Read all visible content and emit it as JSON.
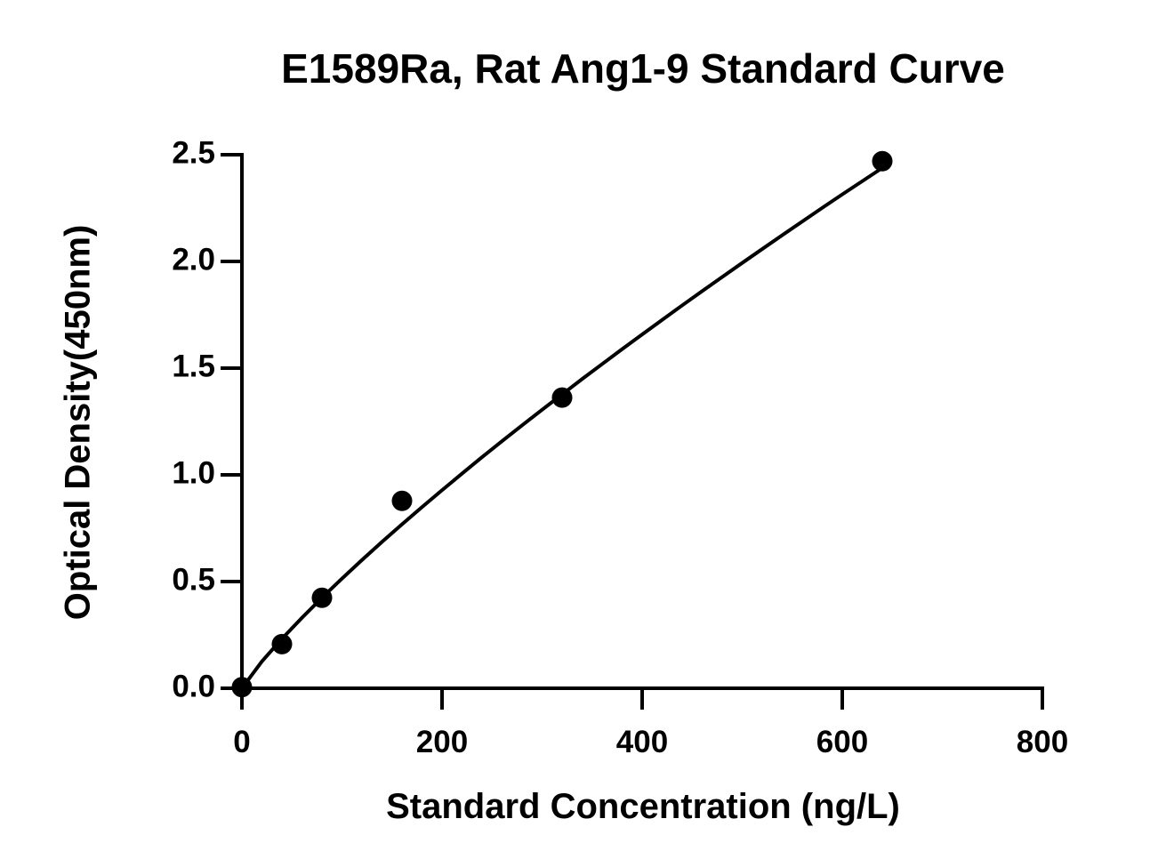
{
  "chart_data": {
    "type": "scatter",
    "title": "E1589Ra, Rat Ang1-9 Standard Curve",
    "xlabel": "Standard Concentration (ng/L)",
    "ylabel": "Optical Density(450nm)",
    "xlim": [
      0,
      800
    ],
    "ylim": [
      0,
      2.5
    ],
    "xticks": [
      0,
      200,
      400,
      600,
      800
    ],
    "xtick_labels": [
      "0",
      "200",
      "400",
      "600",
      "800"
    ],
    "yticks": [
      0,
      0.5,
      1.0,
      1.5,
      2.0,
      2.5
    ],
    "ytick_labels": [
      "0.0",
      "0.5",
      "1.0",
      "1.5",
      "2.0",
      "2.5"
    ],
    "grid": false,
    "series": [
      {
        "x": [
          0,
          40,
          80,
          160,
          320,
          640
        ],
        "y": [
          0.005,
          0.207,
          0.424,
          0.878,
          1.362,
          2.47
        ]
      }
    ],
    "fit_curve": {
      "x": [
        0,
        20,
        40,
        60,
        80,
        100,
        120,
        140,
        160,
        180,
        200,
        220,
        240,
        260,
        280,
        300,
        320,
        340,
        360,
        380,
        400,
        420,
        440,
        460,
        480,
        500,
        520,
        540,
        560,
        580,
        600,
        620,
        640
      ],
      "y": [
        0.0,
        0.126,
        0.232,
        0.33,
        0.424,
        0.514,
        0.601,
        0.686,
        0.768,
        0.849,
        0.928,
        1.006,
        1.083,
        1.158,
        1.232,
        1.305,
        1.377,
        1.449,
        1.519,
        1.589,
        1.658,
        1.726,
        1.794,
        1.861,
        1.927,
        1.993,
        2.058,
        2.123,
        2.187,
        2.251,
        2.314,
        2.376,
        2.438
      ]
    }
  }
}
